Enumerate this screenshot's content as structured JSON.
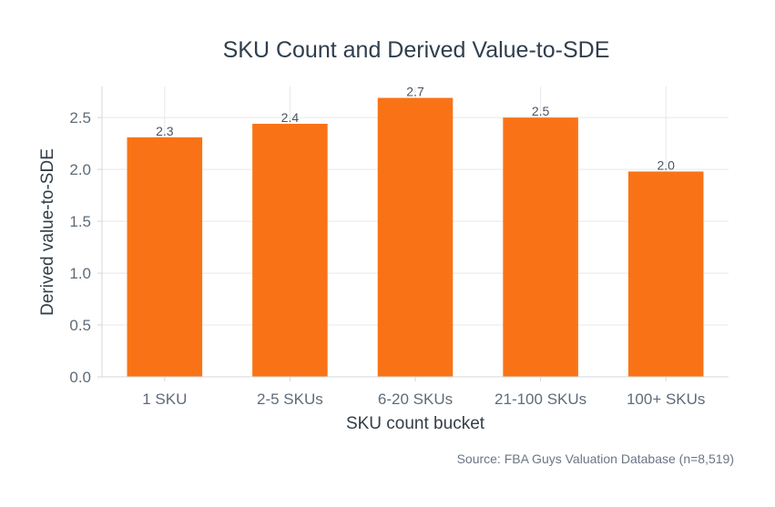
{
  "chart_data": {
    "type": "bar",
    "title": "SKU Count and Derived Value-to-SDE",
    "xlabel": "SKU count bucket",
    "ylabel": "Derived value-to-SDE",
    "categories": [
      "1 SKU",
      "2-5 SKUs",
      "6-20 SKUs",
      "21-100 SKUs",
      "100+ SKUs"
    ],
    "values": [
      2.31,
      2.44,
      2.69,
      2.5,
      1.98
    ],
    "data_labels": [
      "2.3",
      "2.4",
      "2.7",
      "2.5",
      "2.0"
    ],
    "ylim": [
      0,
      2.8
    ],
    "yticks": [
      0.0,
      0.5,
      1.0,
      1.5,
      2.0,
      2.5
    ],
    "ytick_labels": [
      "0.0",
      "0.5",
      "1.0",
      "1.5",
      "2.0",
      "2.5"
    ],
    "grid": true,
    "bar_color": "#f97316",
    "source": "Source: FBA Guys Valuation Database (n=8,519)"
  }
}
